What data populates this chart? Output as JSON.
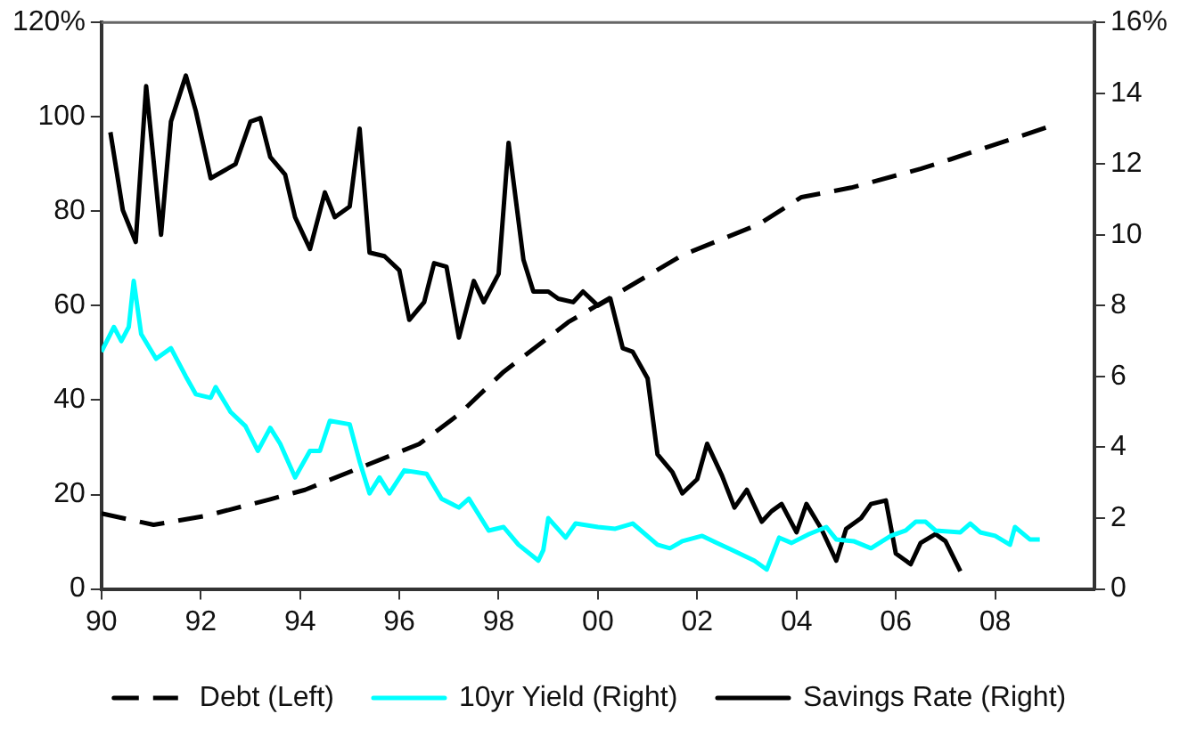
{
  "chart_data": {
    "type": "line",
    "xlim": [
      1990,
      2010
    ],
    "xticks": [
      {
        "value": 1990,
        "label": "90"
      },
      {
        "value": 1992,
        "label": "92"
      },
      {
        "value": 1994,
        "label": "94"
      },
      {
        "value": 1996,
        "label": "96"
      },
      {
        "value": 1998,
        "label": "98"
      },
      {
        "value": 2000,
        "label": "00"
      },
      {
        "value": 2002,
        "label": "02"
      },
      {
        "value": 2004,
        "label": "04"
      },
      {
        "value": 2006,
        "label": "06"
      },
      {
        "value": 2008,
        "label": "08"
      }
    ],
    "ylim": [
      0,
      120
    ],
    "yticks": [
      0,
      20,
      40,
      60,
      80,
      100,
      {
        "value": 120,
        "label": "120%"
      }
    ],
    "y2lim": [
      0,
      16
    ],
    "y2ticks": [
      0,
      2,
      4,
      6,
      8,
      10,
      12,
      14,
      {
        "value": 16,
        "label": "16%"
      }
    ],
    "grid": false,
    "legend": "bottom",
    "marker": "none",
    "series": [
      {
        "name": "Debt (Left)",
        "color": "#000000",
        "line_style": "dashed",
        "x": [
          1990,
          1991.05,
          1992.1,
          1993.4,
          1994.1,
          1996.4,
          1997.2,
          1998.1,
          1999.4,
          2000.25,
          2001.7,
          2003.25,
          2004.1,
          2005.1,
          2006.5,
          2007.1,
          2009.05
        ],
        "values": [
          16,
          13.6,
          15.5,
          19,
          21,
          30.7,
          37,
          46,
          56.5,
          61.7,
          70.7,
          77.3,
          83,
          85,
          89,
          91,
          97.8
        ]
      },
      {
        "name": "10yr Yield (Right)",
        "color": "#00ffff",
        "axis": "y2",
        "line_style": "solid",
        "x": [
          1990,
          1990.25,
          1990.4,
          1990.55,
          1990.65,
          1990.8,
          1991.1,
          1991.4,
          1991.7,
          1991.9,
          1992.2,
          1992.3,
          1992.6,
          1992.9,
          1993.15,
          1993.4,
          1993.6,
          1993.9,
          1994.2,
          1994.4,
          1994.6,
          1995,
          1995.2,
          1995.4,
          1995.6,
          1995.8,
          1996.1,
          1996.55,
          1996.85,
          1997.2,
          1997.4,
          1997.8,
          1998.1,
          1998.4,
          1998.8,
          1998.9,
          1999,
          1999.35,
          1999.55,
          2000,
          2000.35,
          2000.7,
          2001.2,
          2001.45,
          2001.7,
          2002.1,
          2002.4,
          2002.7,
          2003.15,
          2003.4,
          2003.65,
          2003.9,
          2004.25,
          2004.6,
          2004.8,
          2005.15,
          2005.5,
          2005.9,
          2006.2,
          2006.4,
          2006.6,
          2006.8,
          2007.3,
          2007.5,
          2007.7,
          2008,
          2008.3,
          2008.4,
          2008.7,
          2008.9
        ],
        "values": [
          6.7,
          7.4,
          7,
          7.4,
          8.7,
          7.2,
          6.5,
          6.8,
          6,
          5.5,
          5.4,
          5.7,
          5,
          4.6,
          3.9,
          4.55,
          4.1,
          3.15,
          3.9,
          3.9,
          4.75,
          4.65,
          3.6,
          2.7,
          3.15,
          2.7,
          3.35,
          3.25,
          2.55,
          2.3,
          2.55,
          1.65,
          1.75,
          1.25,
          0.8,
          1.1,
          2,
          1.45,
          1.85,
          1.75,
          1.7,
          1.85,
          1.25,
          1.15,
          1.35,
          1.5,
          1.3,
          1.1,
          0.8,
          0.55,
          1.45,
          1.3,
          1.55,
          1.75,
          1.4,
          1.35,
          1.15,
          1.5,
          1.65,
          1.9,
          1.9,
          1.65,
          1.6,
          1.85,
          1.6,
          1.5,
          1.25,
          1.75,
          1.4,
          1.4
        ]
      },
      {
        "name": "Savings Rate (Right)",
        "color": "#000000",
        "axis": "y2",
        "line_style": "solid",
        "x": [
          1990.18,
          1990.43,
          1990.69,
          1990.9,
          1991.2,
          1991.4,
          1991.7,
          1991.9,
          1992.2,
          1992.7,
          1993,
          1993.2,
          1993.4,
          1993.7,
          1993.9,
          1994.2,
          1994.5,
          1994.7,
          1995,
          1995.2,
          1995.4,
          1995.7,
          1996,
          1996.2,
          1996.5,
          1996.7,
          1996.95,
          1997.2,
          1997.5,
          1997.7,
          1998,
          1998.2,
          1998.5,
          1998.7,
          1999,
          1999.2,
          1999.5,
          1999.7,
          2000,
          2000.25,
          2000.5,
          2000.7,
          2001,
          2001.2,
          2001.5,
          2001.7,
          2002,
          2002.2,
          2002.5,
          2002.75,
          2003,
          2003.3,
          2003.5,
          2003.7,
          2004,
          2004.2,
          2004.5,
          2004.8,
          2005,
          2005.3,
          2005.5,
          2005.8,
          2006,
          2006.3,
          2006.5,
          2006.8,
          2007,
          2007.3
        ],
        "values": [
          12.9,
          10.7,
          9.8,
          14.2,
          10,
          13.2,
          14.5,
          13.5,
          11.6,
          12,
          13.2,
          13.3,
          12.2,
          11.7,
          10.5,
          9.6,
          11.2,
          10.5,
          10.8,
          13,
          9.5,
          9.4,
          9,
          7.6,
          8.1,
          9.2,
          9.1,
          7.1,
          8.7,
          8.1,
          8.9,
          12.6,
          9.3,
          8.4,
          8.4,
          8.2,
          8.1,
          8.4,
          8,
          8.2,
          6.8,
          6.7,
          5.95,
          3.8,
          3.3,
          2.7,
          3.1,
          4.1,
          3.2,
          2.3,
          2.8,
          1.9,
          2.2,
          2.4,
          1.6,
          2.4,
          1.7,
          0.8,
          1.7,
          2,
          2.4,
          2.5,
          1,
          0.7,
          1.3,
          1.55,
          1.35,
          0.5
        ]
      }
    ]
  }
}
